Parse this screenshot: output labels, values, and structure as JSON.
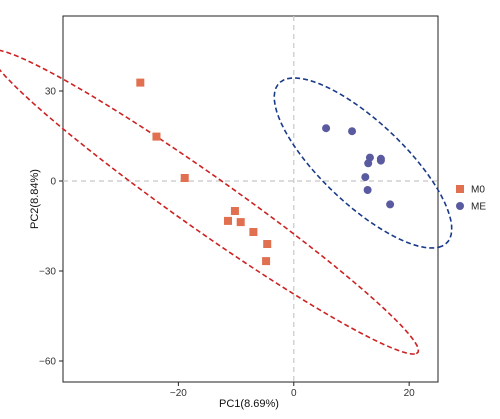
{
  "chart_data": {
    "type": "scatter",
    "xlabel": "PC1(8.69%)",
    "ylabel": "PC2(8.84%)",
    "xlim": [
      -40,
      25
    ],
    "ylim": [
      -67,
      55
    ],
    "x_ticks": [
      -20,
      0,
      20
    ],
    "y_ticks": [
      -60,
      -30,
      0,
      30
    ],
    "x_tick_labels": [
      "−20",
      "0",
      "20"
    ],
    "y_tick_labels": [
      "−60",
      "−30",
      "0",
      "30"
    ],
    "grid": false,
    "reference_lines": {
      "x": 0,
      "y": 0,
      "style": "dashed",
      "color": "#c8c8c8"
    },
    "legend_position": "right",
    "series": [
      {
        "name": "M0",
        "color": "#e07050",
        "marker": "square",
        "points": [
          [
            -26.6,
            32.8
          ],
          [
            -23.8,
            14.8
          ],
          [
            -18.9,
            1.0
          ],
          [
            -11.4,
            -13.3
          ],
          [
            -10.2,
            -10.0
          ],
          [
            -9.2,
            -13.7
          ],
          [
            -7.0,
            -17.0
          ],
          [
            -4.6,
            -21.0
          ],
          [
            -4.8,
            -26.7
          ]
        ],
        "ellipse": {
          "cx": -15.5,
          "cy": -7.0,
          "rx": 62.5,
          "ry": 6.55,
          "angle_deg": -54,
          "color": "#cc2222"
        }
      },
      {
        "name": "ME",
        "color": "#5a5aa0",
        "marker": "circle",
        "points": [
          [
            5.6,
            17.6
          ],
          [
            10.1,
            16.6
          ],
          [
            13.2,
            7.8
          ],
          [
            12.9,
            5.9
          ],
          [
            15.1,
            7.4
          ],
          [
            12.4,
            1.3
          ],
          [
            15.1,
            6.8
          ],
          [
            12.8,
            -3.0
          ],
          [
            16.7,
            -7.8
          ]
        ],
        "ellipse": {
          "cx": 12.0,
          "cy": 6.0,
          "rx": 31.0,
          "ry": 8.9,
          "angle_deg": -65,
          "color": "#1a3a8a"
        }
      }
    ]
  }
}
